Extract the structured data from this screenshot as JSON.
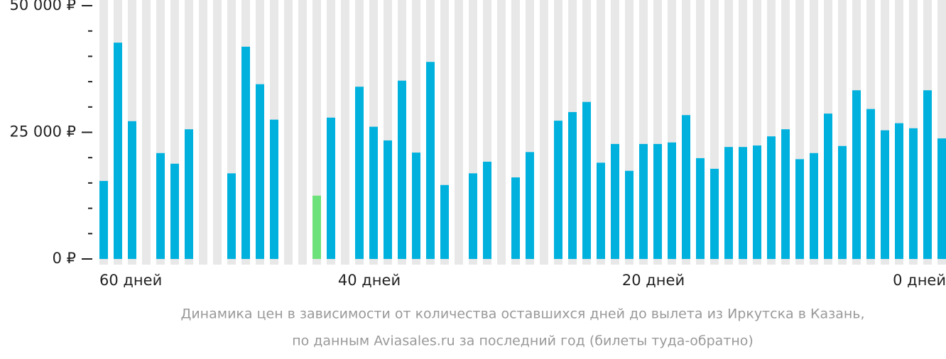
{
  "chart_data": {
    "type": "bar",
    "caption": [
      "Динамика цен в зависимости от количества оставшихся дней до вылета из Иркутска в Казань,",
      "по данным Aviasales.ru за последний год (билеты туда-обратно)"
    ],
    "x": [
      60,
      59,
      58,
      57,
      56,
      55,
      54,
      53,
      52,
      51,
      50,
      49,
      48,
      47,
      46,
      45,
      44,
      43,
      42,
      41,
      40,
      39,
      38,
      37,
      36,
      35,
      34,
      33,
      32,
      31,
      30,
      29,
      28,
      27,
      26,
      25,
      24,
      23,
      22,
      21,
      20,
      19,
      18,
      17,
      16,
      15,
      14,
      13,
      12,
      11,
      10,
      9,
      8,
      7,
      6,
      5,
      4,
      3,
      2,
      1
    ],
    "values": [
      15400,
      42700,
      27200,
      null,
      20900,
      18800,
      25600,
      null,
      null,
      16900,
      41900,
      34500,
      27500,
      null,
      null,
      12500,
      27900,
      null,
      34000,
      26100,
      23400,
      35200,
      21000,
      38900,
      14600,
      null,
      16900,
      19200,
      null,
      16100,
      21100,
      null,
      27300,
      29000,
      31000,
      19000,
      22700,
      17400,
      22700,
      22700,
      23000,
      28400,
      19900,
      17800,
      22100,
      22100,
      22400,
      24200,
      25600,
      19700,
      20900,
      28700,
      22300,
      33300,
      29600,
      25400,
      26800,
      25800,
      33300,
      23800
    ],
    "color": "#00b1de",
    "min_color": "#6ee27a",
    "background_color": "#e8e8e8",
    "xlim": [
      60,
      0
    ],
    "xticks": [
      {
        "value": 60,
        "label": "60 дней"
      },
      {
        "value": 40,
        "label": "40 дней"
      },
      {
        "value": 20,
        "label": "20 дней"
      },
      {
        "value": 0,
        "label": "0 дней"
      }
    ],
    "ylim": [
      0,
      50000
    ],
    "yticks": [
      {
        "value": 0,
        "label": "0 ₽"
      },
      {
        "value": 25000,
        "label": "25 000 ₽"
      },
      {
        "value": 50000,
        "label": "50 000 ₽"
      }
    ],
    "yticks_minor": [
      5000,
      10000,
      15000,
      20000,
      30000,
      35000,
      40000,
      45000
    ]
  }
}
